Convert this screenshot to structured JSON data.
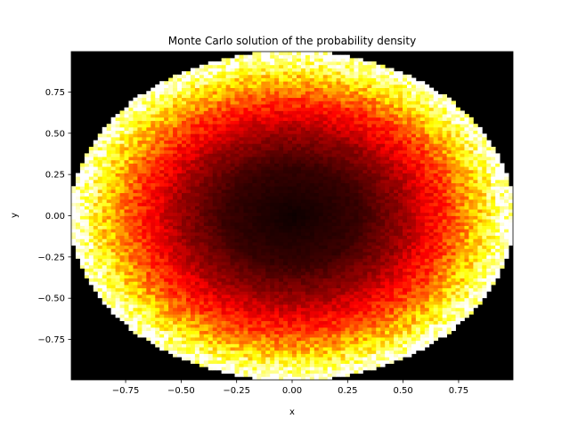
{
  "chart_data": {
    "type": "heatmap",
    "title": "Monte Carlo solution of the probability density",
    "xlabel": "x",
    "ylabel": "y",
    "xlim": [
      -0.995,
      0.995
    ],
    "ylim": [
      -0.995,
      0.995
    ],
    "x_ticks": [
      -0.75,
      -0.5,
      -0.25,
      0.0,
      0.25,
      0.5,
      0.75
    ],
    "x_tick_labels": [
      "−0.75",
      "−0.50",
      "−0.25",
      "0.00",
      "0.25",
      "0.50",
      "0.75"
    ],
    "y_ticks": [
      -0.75,
      -0.5,
      -0.25,
      0.0,
      0.25,
      0.5,
      0.75
    ],
    "y_tick_labels": [
      "−0.75",
      "−0.50",
      "−0.25",
      "0.00",
      "0.25",
      "0.50",
      "0.75"
    ],
    "grid": false,
    "colormap": "hot",
    "density_description": "Density is near zero outside the unit disk and at its center, increasing with radius to maximum near the disk boundary (r ≈ 1).",
    "bins": [
      100,
      100
    ],
    "density_profile": {
      "r": [
        0.0,
        0.3,
        0.5,
        0.7,
        0.85,
        0.95,
        1.0
      ],
      "relative_density": [
        0.02,
        0.08,
        0.22,
        0.45,
        0.7,
        0.92,
        1.0
      ]
    }
  }
}
